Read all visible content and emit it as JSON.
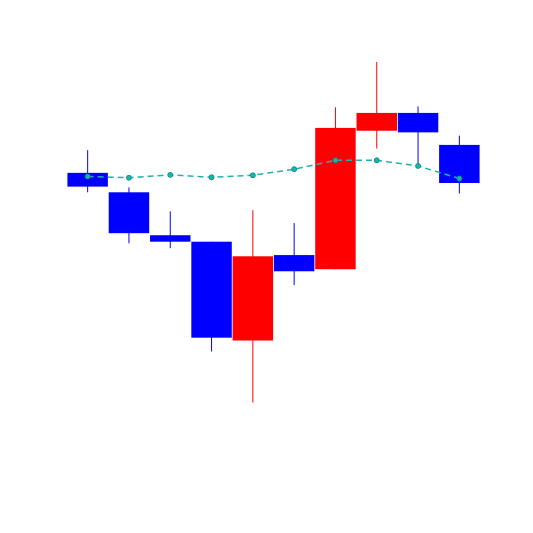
{
  "chart_data": {
    "type": "candlestick",
    "title": "",
    "xlabel": "",
    "ylabel": "",
    "axes_visible": false,
    "grid": false,
    "legend": "none",
    "ylim": [
      0,
      100
    ],
    "colors": {
      "up": "#ff0000",
      "down": "#0000ff",
      "moving_average_line": "#20b2aa",
      "moving_average_marker": "#008b8b",
      "background": "#ffffff"
    },
    "candles": [
      {
        "index": 1,
        "open": 70.9,
        "high": 76.5,
        "low": 66.1,
        "close": 67.5
      },
      {
        "index": 2,
        "open": 66.1,
        "high": 67.3,
        "low": 53.5,
        "close": 56.0
      },
      {
        "index": 3,
        "open": 55.5,
        "high": 61.4,
        "low": 52.3,
        "close": 53.9
      },
      {
        "index": 4,
        "open": 53.9,
        "high": 53.9,
        "low": 26.8,
        "close": 30.2
      },
      {
        "index": 5,
        "open": 29.5,
        "high": 61.7,
        "low": 14.2,
        "close": 50.3
      },
      {
        "index": 6,
        "open": 50.6,
        "high": 58.5,
        "low": 43.2,
        "close": 46.6
      },
      {
        "index": 7,
        "open": 47.1,
        "high": 87.1,
        "low": 47.1,
        "close": 82.0
      },
      {
        "index": 8,
        "open": 81.3,
        "high": 98.3,
        "low": 76.9,
        "close": 85.7
      },
      {
        "index": 9,
        "open": 85.7,
        "high": 87.3,
        "low": 73.1,
        "close": 80.9
      },
      {
        "index": 10,
        "open": 77.8,
        "high": 80.1,
        "low": 65.8,
        "close": 68.4
      }
    ],
    "moving_average": [
      70.0,
      69.7,
      70.4,
      69.8,
      70.3,
      71.8,
      74.0,
      74.0,
      72.6,
      69.5
    ]
  }
}
